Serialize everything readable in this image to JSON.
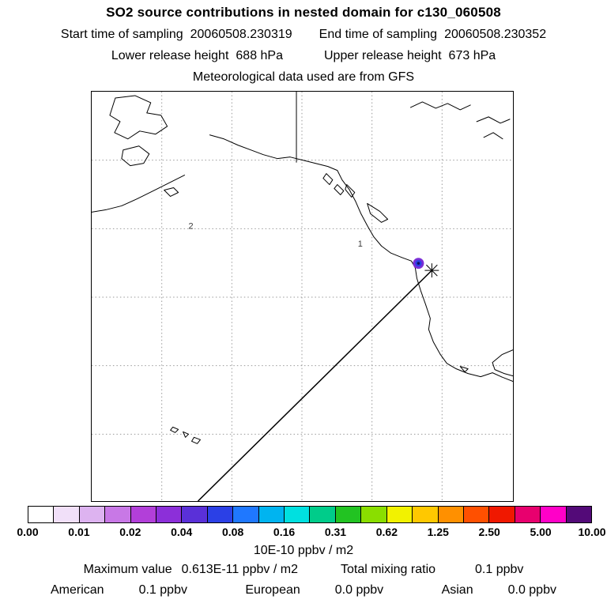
{
  "header": {
    "title": "SO2 source contributions in nested domain for c130_060508",
    "sampling": {
      "start_label": "Start time of sampling",
      "start_value": "20060508.230319",
      "end_label": "End time of sampling",
      "end_value": "20060508.230352"
    },
    "release": {
      "lower_label": "Lower release height",
      "lower_value": "688 hPa",
      "upper_label": "Upper release height",
      "upper_value": "673 hPa"
    },
    "met_line": "Meteorological data used are from GFS"
  },
  "map": {
    "labels": [
      {
        "text": "2"
      },
      {
        "text": "1"
      }
    ]
  },
  "colorbar": {
    "ticks": [
      "0.00",
      "0.01",
      "0.02",
      "0.04",
      "0.08",
      "0.16",
      "0.31",
      "0.62",
      "1.25",
      "2.50",
      "5.00",
      "10.00"
    ],
    "units": "10E-10 ppbv / m2",
    "colors": [
      "#ffffff",
      "#f1e0f9",
      "#ddb3f0",
      "#c878e6",
      "#b23fd9",
      "#8c2fd9",
      "#5a30d8",
      "#2b40e6",
      "#1f78ff",
      "#00b4f0",
      "#00e0e0",
      "#00cc8a",
      "#22c322",
      "#8ade00",
      "#f2f200",
      "#ffc800",
      "#ff9000",
      "#ff5000",
      "#f01800",
      "#e8006e",
      "#ff00c8",
      "#530a78"
    ]
  },
  "footer": {
    "max_label": "Maximum value",
    "max_value": "0.613E-11 ppbv / m2",
    "total_label": "Total mixing ratio",
    "total_value": "0.1 ppbv",
    "regions": [
      {
        "name": "American",
        "value": "0.1 ppbv"
      },
      {
        "name": "European",
        "value": "0.0 ppbv"
      },
      {
        "name": "Asian",
        "value": "0.0 ppbv"
      }
    ]
  },
  "chart_data": {
    "type": "heatmap",
    "title": "SO2 source contributions in nested domain for c130_060508",
    "subtitle": "Meteorological data used are from GFS",
    "sampling_start": "20060508.230319",
    "sampling_end": "20060508.230352",
    "lower_release_height_hPa": 688,
    "upper_release_height_hPa": 673,
    "colorbar_levels": [
      0.0,
      0.01,
      0.02,
      0.04,
      0.08,
      0.16,
      0.31,
      0.62,
      1.25,
      2.5,
      5.0,
      10.0
    ],
    "colorbar_units": "10E-10 ppbv / m2",
    "maximum_value": "0.613E-11 ppbv / m2",
    "total_mixing_ratio_ppbv": 0.1,
    "contributions_ppbv": {
      "American": 0.1,
      "European": 0.0,
      "Asian": 0.0
    },
    "map_annotations": [
      "2",
      "1"
    ],
    "legend_position": "bottom",
    "grid": true
  }
}
